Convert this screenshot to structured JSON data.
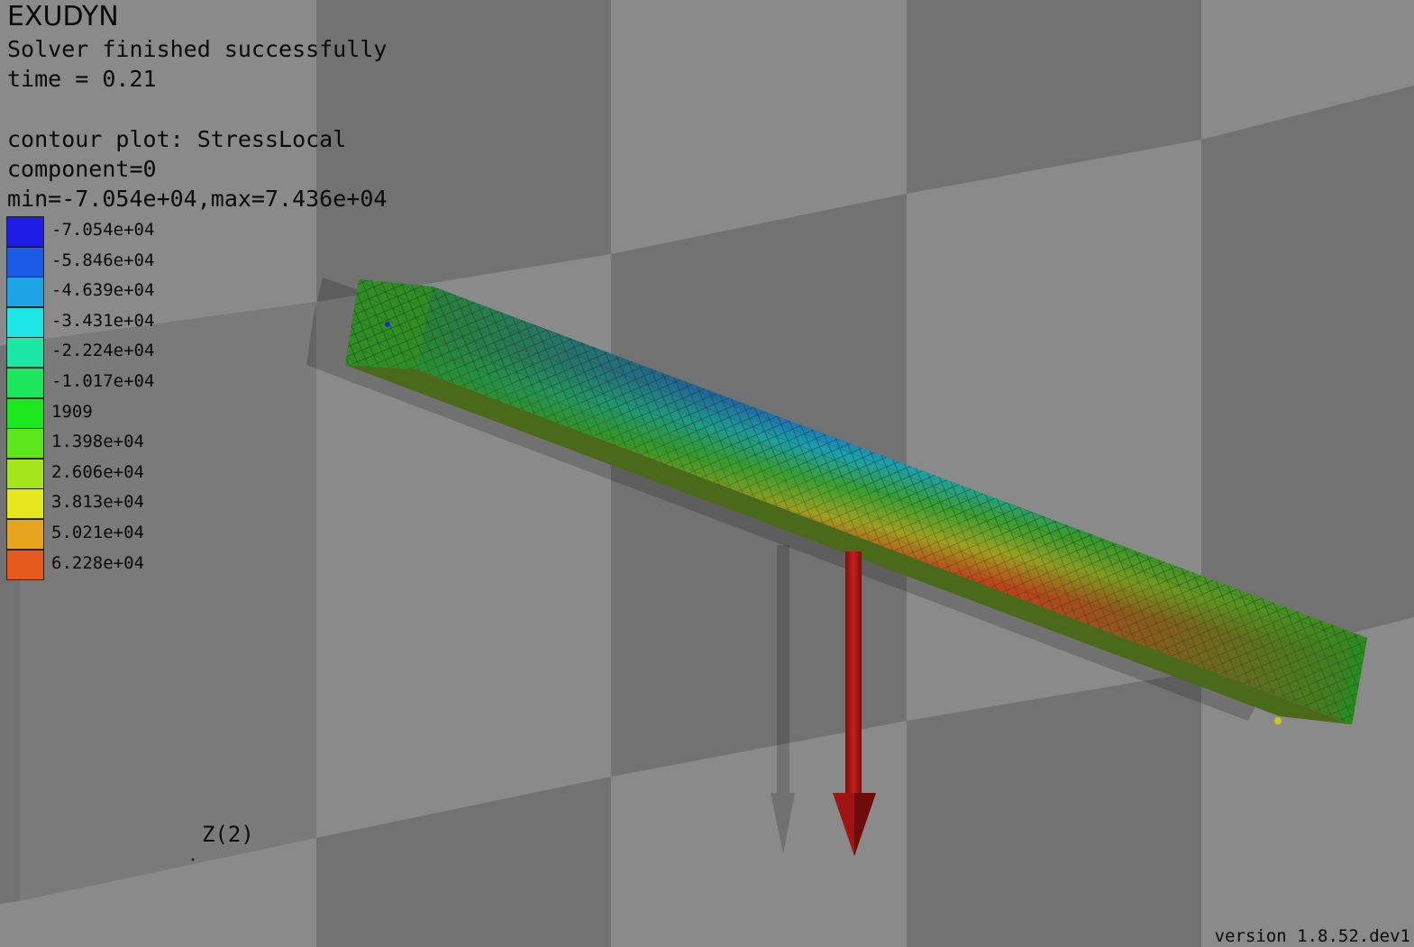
{
  "app": {
    "title": "EXUDYN",
    "status": "Solver finished successfully",
    "time": "time = 0.21",
    "contour": "contour plot: StressLocal",
    "component": "component=0",
    "range": "min=-7.054e+04,max=7.436e+04",
    "version": "version 1.8.52.dev1",
    "axis_label": "Z(2)"
  },
  "legend": [
    {
      "label": "-7.054e+04",
      "color": "#1c1ce6"
    },
    {
      "label": "-5.846e+04",
      "color": "#1c5ae8"
    },
    {
      "label": "-4.639e+04",
      "color": "#1ca4e6"
    },
    {
      "label": "-3.431e+04",
      "color": "#1ce6e6"
    },
    {
      "label": "-2.224e+04",
      "color": "#1ce6a4"
    },
    {
      "label": "-1.017e+04",
      "color": "#1ce65e"
    },
    {
      "label": "1909",
      "color": "#1ce61c"
    },
    {
      "label": "1.398e+04",
      "color": "#5ee61c"
    },
    {
      "label": "2.606e+04",
      "color": "#a4e61c"
    },
    {
      "label": "3.813e+04",
      "color": "#e6e61c"
    },
    {
      "label": "5.021e+04",
      "color": "#e6a41c"
    },
    {
      "label": "6.228e+04",
      "color": "#e65a1c"
    }
  ],
  "colors": {
    "floor_light": "#8a8a8a",
    "floor_dark": "#727272",
    "beam_green": "#2e8b22",
    "beam_blue": "#1f5fb4",
    "beam_red": "#b23a1a",
    "force_arrow": "#b01818"
  }
}
